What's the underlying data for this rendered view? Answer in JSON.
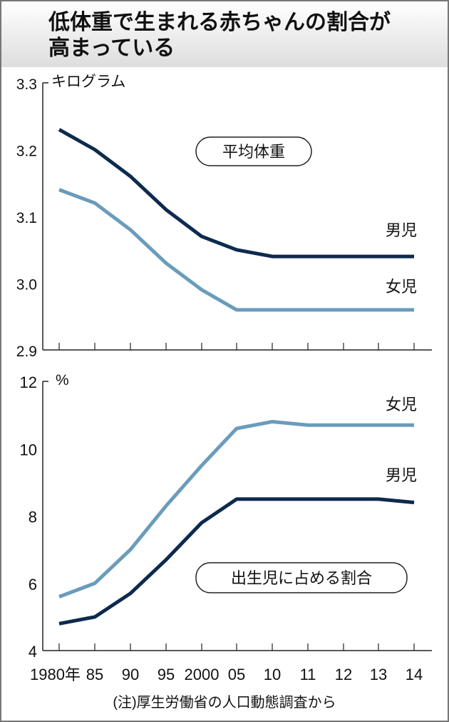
{
  "title": "低体重で生まれる赤ちゃんの割合が高まっている",
  "note": "(注)厚生労働省の人口動態調査から",
  "colors": {
    "male": "#0d2a4e",
    "female": "#6a9cbb"
  },
  "chart_data": [
    {
      "type": "line",
      "label": "平均体重",
      "ylabel": "キログラム",
      "ylim": [
        2.9,
        3.3
      ],
      "yticks": [
        "3.3",
        "3.2",
        "3.1",
        "3.0",
        "2.9"
      ],
      "categories": [
        "1980年",
        "85",
        "90",
        "95",
        "2000",
        "05",
        "10",
        "11",
        "12",
        "13",
        "14"
      ],
      "series": [
        {
          "name": "男児",
          "values": [
            3.23,
            3.2,
            3.16,
            3.11,
            3.07,
            3.05,
            3.04,
            3.04,
            3.04,
            3.04,
            3.04
          ]
        },
        {
          "name": "女児",
          "values": [
            3.14,
            3.12,
            3.08,
            3.03,
            2.99,
            2.96,
            2.96,
            2.96,
            2.96,
            2.96,
            2.96
          ]
        }
      ]
    },
    {
      "type": "line",
      "label": "出生児に占める割合",
      "ylabel": "%",
      "ylim": [
        4,
        12
      ],
      "yticks": [
        "12",
        "10",
        "8",
        "6",
        "4"
      ],
      "categories": [
        "1980年",
        "85",
        "90",
        "95",
        "2000",
        "05",
        "10",
        "11",
        "12",
        "13",
        "14"
      ],
      "series": [
        {
          "name": "女児",
          "values": [
            5.6,
            6.0,
            7.0,
            8.3,
            9.5,
            10.6,
            10.8,
            10.7,
            10.7,
            10.7,
            10.7
          ]
        },
        {
          "name": "男児",
          "values": [
            4.8,
            5.0,
            5.7,
            6.7,
            7.8,
            8.5,
            8.5,
            8.5,
            8.5,
            8.5,
            8.4
          ]
        }
      ]
    }
  ]
}
